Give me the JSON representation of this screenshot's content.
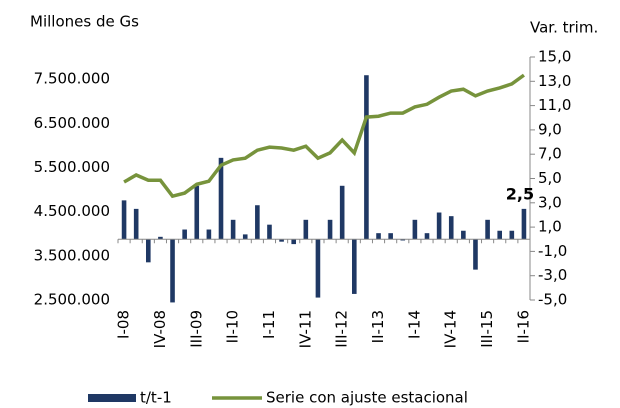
{
  "chart_data": {
    "type": "bar-line",
    "ylabel": "Millones de Gs",
    "y2label": "Var. trim.",
    "categories": [
      "I-08",
      null,
      null,
      "IV-08",
      null,
      null,
      "III-09",
      null,
      null,
      "II-10",
      null,
      null,
      "I-11",
      null,
      null,
      "IV-11",
      null,
      null,
      "III-12",
      null,
      null,
      "II-13",
      null,
      null,
      "I-14",
      null,
      null,
      "IV-14",
      null,
      null,
      "III-15",
      null,
      null,
      "II-16"
    ],
    "series": [
      {
        "name": "t/t-1",
        "type": "bar",
        "axis": "y2",
        "color": "#1f3864",
        "values": [
          3.2,
          2.5,
          -1.9,
          0.2,
          -5.2,
          0.8,
          4.4,
          0.8,
          6.7,
          1.6,
          0.4,
          2.8,
          1.2,
          -0.2,
          -0.4,
          1.6,
          -4.8,
          1.6,
          4.4,
          -4.5,
          13.5,
          0.5,
          0.5,
          -0.1,
          1.6,
          0.5,
          2.2,
          1.9,
          0.7,
          -2.5,
          1.6,
          0.7,
          0.7,
          2.5
        ],
        "value_labels": [
          null,
          null,
          null,
          null,
          null,
          null,
          null,
          null,
          null,
          null,
          null,
          null,
          null,
          null,
          null,
          null,
          null,
          null,
          null,
          null,
          null,
          null,
          null,
          null,
          null,
          null,
          null,
          null,
          null,
          null,
          null,
          null,
          null,
          "2,5"
        ]
      },
      {
        "name": "Serie con ajuste estacional",
        "type": "line",
        "axis": "y",
        "color": "#77933c",
        "values": [
          5170000,
          5330000,
          5210000,
          5210000,
          4850000,
          4920000,
          5120000,
          5190000,
          5550000,
          5670000,
          5710000,
          5890000,
          5960000,
          5940000,
          5890000,
          5980000,
          5710000,
          5830000,
          6120000,
          5830000,
          6640000,
          6660000,
          6730000,
          6730000,
          6870000,
          6930000,
          7090000,
          7230000,
          7270000,
          7120000,
          7230000,
          7300000,
          7390000,
          7590000
        ]
      }
    ],
    "ylim": [
      2500000,
      8000000
    ],
    "yticks": [
      {
        "value": 2500000,
        "label": "2.500.000"
      },
      {
        "value": 3500000,
        "label": "3.500.000"
      },
      {
        "value": 4500000,
        "label": "4.500.000"
      },
      {
        "value": 5500000,
        "label": "5.500.000"
      },
      {
        "value": 6500000,
        "label": "6.500.000"
      },
      {
        "value": 7500000,
        "label": "7.500.000"
      }
    ],
    "y2lim": [
      -5,
      15
    ],
    "y2ticks": [
      {
        "value": -5,
        "label": "-5,0"
      },
      {
        "value": -3,
        "label": "-3,0"
      },
      {
        "value": -1,
        "label": "-1,0"
      },
      {
        "value": 1,
        "label": "1,0"
      },
      {
        "value": 3,
        "label": "3,0"
      },
      {
        "value": 5,
        "label": "5,0"
      },
      {
        "value": 7,
        "label": "7,0"
      },
      {
        "value": 9,
        "label": "9,0"
      },
      {
        "value": 11,
        "label": "11,0"
      },
      {
        "value": 13,
        "label": "13,0"
      },
      {
        "value": 15,
        "label": "15,0"
      }
    ],
    "legend": "bottom"
  }
}
